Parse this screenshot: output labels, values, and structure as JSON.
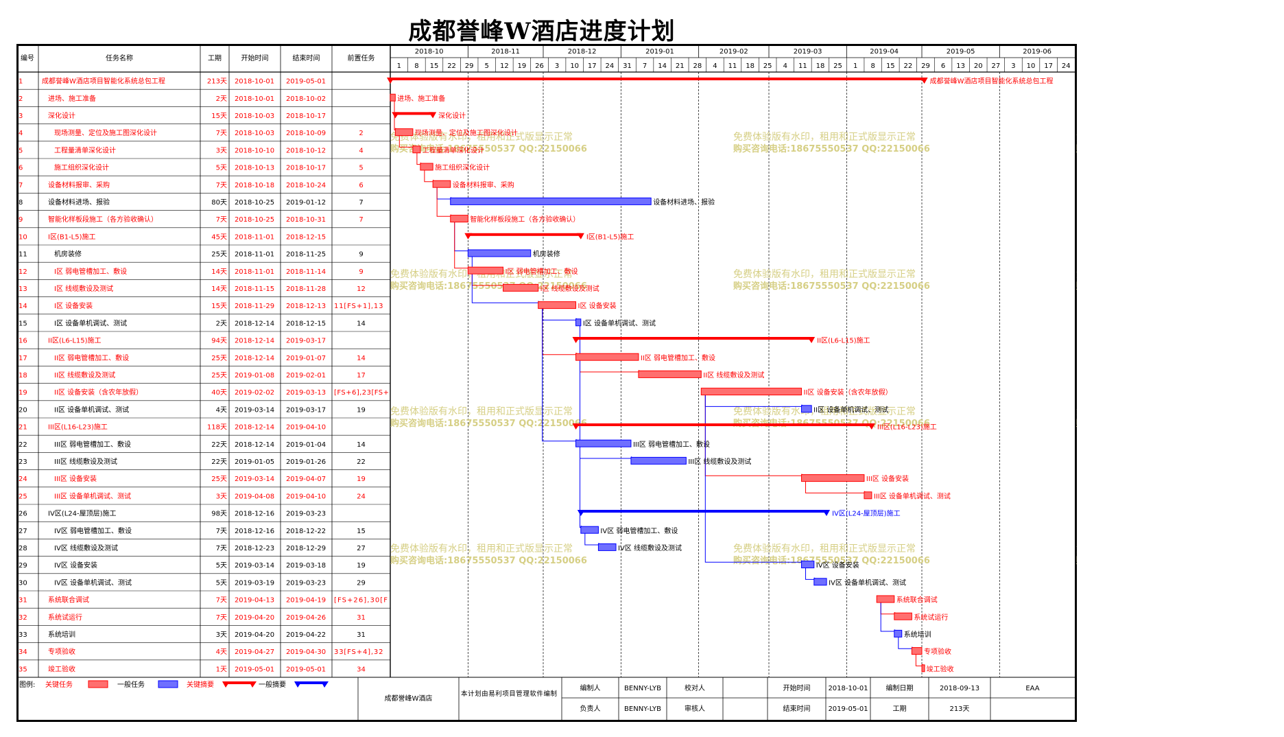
{
  "title": "成都誉峰W酒店进度计划",
  "columns": {
    "num": "编号",
    "name": "任务名称",
    "dur": "工期",
    "start": "开始时间",
    "end": "结束时间",
    "pred": "前置任务"
  },
  "months": [
    "2018-10",
    "2018-11",
    "2018-12",
    "2019-01",
    "2019-02",
    "2019-03",
    "2019-04",
    "2019-05",
    "2019-06"
  ],
  "week_days": [
    "1",
    "8",
    "15",
    "22",
    "29",
    "5",
    "12",
    "19",
    "26",
    "3",
    "10",
    "17",
    "24",
    "31",
    "7",
    "14",
    "21",
    "28",
    "4",
    "11",
    "18",
    "25",
    "4",
    "11",
    "18",
    "25",
    "1",
    "8",
    "15",
    "22",
    "29",
    "6",
    "13",
    "20",
    "27",
    "3",
    "10",
    "17",
    "24"
  ],
  "colors": {
    "critical": "#ff0000",
    "normal": "#0000ff",
    "critical_bar": "#ff6f6f",
    "normal_bar": "#6f6fff",
    "watermark": "#d6cf85"
  },
  "watermark": {
    "line1": "免费体验版有水印，租用和正式版显示正常",
    "line2": "购买咨询电话:18675550537 QQ:22150066"
  },
  "tasks": [
    {
      "id": "1",
      "name": "成都誉峰W酒店项目智能化系统总包工程",
      "dur": "213天",
      "start": "2018-10-01",
      "end": "2019-05-01",
      "pred": "",
      "critical": true,
      "summary": true,
      "indent": 0,
      "s": 0,
      "e": 212
    },
    {
      "id": "2",
      "name": "进场、施工准备",
      "dur": "2天",
      "start": "2018-10-01",
      "end": "2018-10-02",
      "pred": "",
      "critical": true,
      "summary": false,
      "indent": 1,
      "s": 0,
      "e": 1
    },
    {
      "id": "3",
      "name": "深化设计",
      "dur": "15天",
      "start": "2018-10-03",
      "end": "2018-10-17",
      "pred": "",
      "critical": true,
      "summary": true,
      "indent": 1,
      "s": 2,
      "e": 16
    },
    {
      "id": "4",
      "name": "现场测量、定位及施工图深化设计",
      "dur": "7天",
      "start": "2018-10-03",
      "end": "2018-10-09",
      "pred": "2",
      "critical": true,
      "summary": false,
      "indent": 2,
      "s": 2,
      "e": 8
    },
    {
      "id": "5",
      "name": "工程量清单深化设计",
      "dur": "3天",
      "start": "2018-10-10",
      "end": "2018-10-12",
      "pred": "4",
      "critical": true,
      "summary": false,
      "indent": 2,
      "s": 9,
      "e": 11
    },
    {
      "id": "6",
      "name": "施工组织深化设计",
      "dur": "5天",
      "start": "2018-10-13",
      "end": "2018-10-17",
      "pred": "5",
      "critical": true,
      "summary": false,
      "indent": 2,
      "s": 12,
      "e": 16
    },
    {
      "id": "7",
      "name": "设备材料报审、采购",
      "dur": "7天",
      "start": "2018-10-18",
      "end": "2018-10-24",
      "pred": "6",
      "critical": true,
      "summary": false,
      "indent": 1,
      "s": 17,
      "e": 23
    },
    {
      "id": "8",
      "name": "设备材料进场、报验",
      "dur": "80天",
      "start": "2018-10-25",
      "end": "2019-01-12",
      "pred": "7",
      "critical": false,
      "summary": false,
      "indent": 1,
      "s": 24,
      "e": 103
    },
    {
      "id": "9",
      "name": "智能化样板段施工（各方验收确认）",
      "dur": "7天",
      "start": "2018-10-25",
      "end": "2018-10-31",
      "pred": "7",
      "critical": true,
      "summary": false,
      "indent": 1,
      "s": 24,
      "e": 30
    },
    {
      "id": "10",
      "name": "I区(B1-L5)施工",
      "dur": "45天",
      "start": "2018-11-01",
      "end": "2018-12-15",
      "pred": "",
      "critical": true,
      "summary": true,
      "indent": 1,
      "s": 31,
      "e": 75
    },
    {
      "id": "11",
      "name": "机房装修",
      "dur": "25天",
      "start": "2018-11-01",
      "end": "2018-11-25",
      "pred": "9",
      "critical": false,
      "summary": false,
      "indent": 2,
      "s": 31,
      "e": 55
    },
    {
      "id": "12",
      "name": "I区 弱电管槽加工、敷设",
      "dur": "14天",
      "start": "2018-11-01",
      "end": "2018-11-14",
      "pred": "9",
      "critical": true,
      "summary": false,
      "indent": 2,
      "s": 31,
      "e": 44
    },
    {
      "id": "13",
      "name": "I区 线缆敷设及测试",
      "dur": "14天",
      "start": "2018-11-15",
      "end": "2018-11-28",
      "pred": "12",
      "critical": true,
      "summary": false,
      "indent": 2,
      "s": 45,
      "e": 58
    },
    {
      "id": "14",
      "name": "I区 设备安装",
      "dur": "15天",
      "start": "2018-11-29",
      "end": "2018-12-13",
      "pred": "11[FS+1],13",
      "critical": true,
      "summary": false,
      "indent": 2,
      "s": 59,
      "e": 73
    },
    {
      "id": "15",
      "name": "I区 设备单机调试、测试",
      "dur": "2天",
      "start": "2018-12-14",
      "end": "2018-12-15",
      "pred": "14",
      "critical": false,
      "summary": false,
      "indent": 2,
      "s": 74,
      "e": 75
    },
    {
      "id": "16",
      "name": "II区(L6-L15)施工",
      "dur": "94天",
      "start": "2018-12-14",
      "end": "2019-03-17",
      "pred": "",
      "critical": true,
      "summary": true,
      "indent": 1,
      "s": 74,
      "e": 167
    },
    {
      "id": "17",
      "name": "II区 弱电管槽加工、敷设",
      "dur": "25天",
      "start": "2018-12-14",
      "end": "2019-01-07",
      "pred": "14",
      "critical": true,
      "summary": false,
      "indent": 2,
      "s": 74,
      "e": 98
    },
    {
      "id": "18",
      "name": "II区 线缆敷设及测试",
      "dur": "25天",
      "start": "2019-01-08",
      "end": "2019-02-01",
      "pred": "17",
      "critical": true,
      "summary": false,
      "indent": 2,
      "s": 99,
      "e": 123
    },
    {
      "id": "19",
      "name": "II区 设备安装（含农年放假）",
      "dur": "40天",
      "start": "2019-02-02",
      "end": "2019-03-13",
      "pred": "[FS+6],23[FS+",
      "critical": true,
      "summary": false,
      "indent": 2,
      "s": 124,
      "e": 163
    },
    {
      "id": "20",
      "name": "II区 设备单机调试、测试",
      "dur": "4天",
      "start": "2019-03-14",
      "end": "2019-03-17",
      "pred": "19",
      "critical": false,
      "summary": false,
      "indent": 2,
      "s": 164,
      "e": 167
    },
    {
      "id": "21",
      "name": "III区(L16-L23)施工",
      "dur": "118天",
      "start": "2018-12-14",
      "end": "2019-04-10",
      "pred": "",
      "critical": true,
      "summary": true,
      "indent": 1,
      "s": 74,
      "e": 191
    },
    {
      "id": "22",
      "name": "III区 弱电管槽加工、敷设",
      "dur": "22天",
      "start": "2018-12-14",
      "end": "2019-01-04",
      "pred": "14",
      "critical": false,
      "summary": false,
      "indent": 2,
      "s": 74,
      "e": 95
    },
    {
      "id": "23",
      "name": "III区 线缆敷设及测试",
      "dur": "22天",
      "start": "2019-01-05",
      "end": "2019-01-26",
      "pred": "22",
      "critical": false,
      "summary": false,
      "indent": 2,
      "s": 96,
      "e": 117
    },
    {
      "id": "24",
      "name": "III区 设备安装",
      "dur": "25天",
      "start": "2019-03-14",
      "end": "2019-04-07",
      "pred": "19",
      "critical": true,
      "summary": false,
      "indent": 2,
      "s": 164,
      "e": 188
    },
    {
      "id": "25",
      "name": "III区 设备单机调试、测试",
      "dur": "3天",
      "start": "2019-04-08",
      "end": "2019-04-10",
      "pred": "24",
      "critical": true,
      "summary": false,
      "indent": 2,
      "s": 189,
      "e": 191
    },
    {
      "id": "26",
      "name": "IV区(L24-屋顶层)施工",
      "dur": "98天",
      "start": "2018-12-16",
      "end": "2019-03-23",
      "pred": "",
      "critical": false,
      "summary": true,
      "indent": 1,
      "s": 76,
      "e": 173
    },
    {
      "id": "27",
      "name": "IV区 弱电管槽加工、敷设",
      "dur": "7天",
      "start": "2018-12-16",
      "end": "2018-12-22",
      "pred": "15",
      "critical": false,
      "summary": false,
      "indent": 2,
      "s": 76,
      "e": 82
    },
    {
      "id": "28",
      "name": "IV区 线缆敷设及测试",
      "dur": "7天",
      "start": "2018-12-23",
      "end": "2018-12-29",
      "pred": "27",
      "critical": false,
      "summary": false,
      "indent": 2,
      "s": 83,
      "e": 89
    },
    {
      "id": "29",
      "name": "IV区 设备安装",
      "dur": "5天",
      "start": "2019-03-14",
      "end": "2019-03-18",
      "pred": "19",
      "critical": false,
      "summary": false,
      "indent": 2,
      "s": 164,
      "e": 168
    },
    {
      "id": "30",
      "name": "IV区 设备单机调试、测试",
      "dur": "5天",
      "start": "2019-03-19",
      "end": "2019-03-23",
      "pred": "29",
      "critical": false,
      "summary": false,
      "indent": 2,
      "s": 169,
      "e": 173
    },
    {
      "id": "31",
      "name": "系统联合调试",
      "dur": "7天",
      "start": "2019-04-13",
      "end": "2019-04-19",
      "pred": "[FS+26],30[F",
      "critical": true,
      "summary": false,
      "indent": 1,
      "s": 194,
      "e": 200
    },
    {
      "id": "32",
      "name": "系统试运行",
      "dur": "7天",
      "start": "2019-04-20",
      "end": "2019-04-26",
      "pred": "31",
      "critical": true,
      "summary": false,
      "indent": 1,
      "s": 201,
      "e": 207
    },
    {
      "id": "33",
      "name": "系统培训",
      "dur": "3天",
      "start": "2019-04-20",
      "end": "2019-04-22",
      "pred": "31",
      "critical": false,
      "summary": false,
      "indent": 1,
      "s": 201,
      "e": 203
    },
    {
      "id": "34",
      "name": "专项验收",
      "dur": "4天",
      "start": "2019-04-27",
      "end": "2019-04-30",
      "pred": "33[FS+4],32",
      "critical": true,
      "summary": false,
      "indent": 1,
      "s": 208,
      "e": 211
    },
    {
      "id": "35",
      "name": "竣工验收",
      "dur": "1天",
      "start": "2019-05-01",
      "end": "2019-05-01",
      "pred": "34",
      "critical": true,
      "summary": false,
      "indent": 1,
      "s": 212,
      "e": 212
    }
  ],
  "labels": {
    "1": "成都誉峰W酒店项目智能化系统总包工程",
    "2": "进场、施工准备",
    "3": "深化设计",
    "4": "现场测量、定位及施工图深化设计",
    "5": "工程量清单深化设计",
    "6": "施工组织深化设计",
    "7": "设备材料报审、采购",
    "8": "设备材料进场、报验",
    "9": "智能化样板段施工（各方验收确认）",
    "10": "I区(B1-L5)施工",
    "11": "机房装修",
    "12": "I区 弱电管槽加工、敷设",
    "13": "I区 线缆敷设及测试",
    "14": "I区 设备安装",
    "15": "I区 设备单机调试、测试",
    "16": "II区(L6-L15)施工",
    "17": "II区 弱电管槽加工、敷设",
    "18": "II区 线缆敷设及测试",
    "19": "II区 设备安装（含农年放假）",
    "20": "II区 设备单机调试、测试",
    "21": "III区(L16-L23)施工",
    "22": "III区 弱电管槽加工、敷设",
    "23": "III区 线缆敷设及测试",
    "24": "III区 设备安装",
    "25": "III区 设备单机调试、测试",
    "26": "IV区(L24-屋顶层)施工",
    "27": "IV区 弱电管槽加工、敷设",
    "28": "IV区 线缆敷设及测试",
    "29": "IV区 设备安装",
    "30": "IV区 设备单机调试、测试",
    "31": "系统联合调试",
    "32": "系统试运行",
    "33": "系统培训",
    "34": "专项验收",
    "35": "竣工验收"
  },
  "legend": {
    "label": "图例:",
    "critical_task": "关键任务",
    "normal_task": "一般任务",
    "critical_summary": "关键摘要",
    "normal_summary": "一般摘要"
  },
  "footer": {
    "project": "成都誉峰W酒店",
    "software": "本计划由易利项目管理软件编制",
    "compiler_label": "编制人",
    "compiler": "BENNY-LYB",
    "checker_label": "校对人",
    "checker": "",
    "owner_label": "负责人",
    "owner": "BENNY-LYB",
    "reviewer_label": "审核人",
    "reviewer": "",
    "start_label": "开始时间",
    "start": "2018-10-01",
    "end_label": "结束时间",
    "end": "2019-05-01",
    "date_label": "编制日期",
    "date": "2018-09-13",
    "duration_label": "工期",
    "duration": "213天",
    "code": "EAA"
  }
}
